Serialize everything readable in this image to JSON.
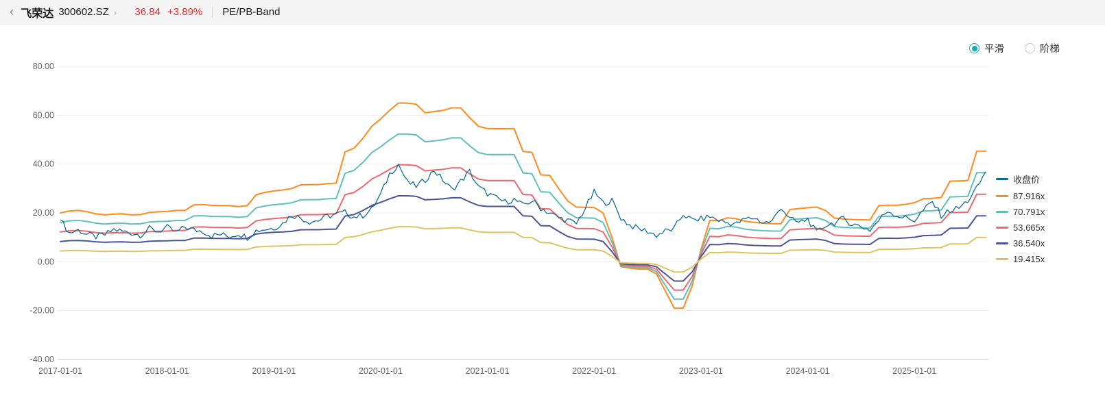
{
  "header": {
    "back_icon": "‹",
    "stock_name": "飞荣达",
    "stock_code": "300602.SZ",
    "chevron": "›",
    "price": "36.84",
    "change": "+3.89%",
    "page_title": "PE/PB-Band",
    "price_color": "#e12e2e"
  },
  "controls": {
    "accent_color": "#0fb0b5",
    "options": [
      {
        "label": "平滑",
        "selected": true
      },
      {
        "label": "阶梯",
        "selected": false
      }
    ]
  },
  "chart_data": {
    "type": "line",
    "title": "PE/PB-Band",
    "grid": true,
    "legend_position": "right",
    "x_axis": {
      "sampling": "monthly",
      "start": "2017-01",
      "end": "2025-09",
      "months_per_tick": 12,
      "tick_labels": [
        "2017-01-01",
        "2018-01-01",
        "2019-01-01",
        "2020-01-01",
        "2021-01-01",
        "2022-01-01",
        "2023-01-01",
        "2024-01-01",
        "2025-01-01"
      ]
    },
    "y_axis": {
      "min": -40,
      "max": 80,
      "ticks": [
        80,
        60,
        40,
        20,
        0,
        -20,
        -40
      ],
      "tick_format": "0.00"
    },
    "close_series": {
      "name": "收盘价",
      "color": "#0f6c97",
      "values": [
        17.2,
        11.8,
        13.0,
        11.2,
        10.2,
        11.0,
        13.2,
        12.4,
        11.8,
        11.0,
        13.6,
        12.4,
        14.0,
        11.9,
        14.2,
        13.0,
        12.6,
        10.6,
        11.2,
        10.4,
        11.6,
        10.0,
        12.8,
        13.4,
        13.8,
        15.8,
        19.2,
        18.0,
        16.4,
        17.0,
        18.6,
        19.4,
        20.2,
        18.4,
        19.0,
        21.5,
        27.5,
        36.0,
        40.0,
        32.5,
        31.0,
        33.5,
        37.5,
        33.5,
        29.5,
        33.0,
        37.0,
        30.5,
        28.0,
        26.0,
        24.5,
        25.5,
        23.0,
        25.0,
        22.0,
        20.0,
        18.0,
        17.0,
        15.5,
        22.0,
        28.5,
        24.0,
        25.0,
        18.0,
        15.0,
        13.5,
        12.5,
        10.8,
        12.5,
        13.5,
        19.5,
        17.0,
        17.5,
        18.5,
        17.0,
        16.0,
        15.5,
        17.5,
        18.0,
        16.0,
        16.5,
        22.5,
        17.5,
        16.0,
        17.5,
        11.8,
        15.0,
        16.0,
        17.5,
        15.5,
        14.5,
        13.0,
        17.0,
        21.0,
        19.0,
        18.0,
        17.0,
        21.0,
        24.5,
        19.0,
        21.0,
        22.0,
        25.0,
        30.0,
        36.84
      ]
    },
    "pe_bands": {
      "driver_multiple": 87.916,
      "driver_values": [
        20.0,
        20.8,
        21.0,
        20.5,
        19.6,
        19.2,
        19.5,
        19.6,
        19.2,
        19.3,
        20.2,
        20.5,
        20.6,
        21.0,
        21.0,
        23.3,
        23.4,
        23.1,
        23.0,
        23.0,
        22.6,
        23.0,
        27.4,
        28.4,
        29.0,
        29.4,
        30.0,
        31.5,
        31.6,
        31.6,
        32.0,
        32.2,
        45.0,
        46.5,
        50.5,
        55.5,
        58.5,
        62.0,
        65.0,
        65.0,
        64.5,
        61.0,
        61.5,
        62.0,
        63.0,
        63.0,
        59.0,
        55.5,
        54.5,
        54.5,
        54.5,
        54.5,
        45.2,
        44.8,
        35.6,
        35.4,
        30.0,
        25.0,
        22.4,
        22.3,
        22.2,
        20.0,
        10.0,
        -2.0,
        -2.6,
        -3.0,
        -3.0,
        -5.0,
        -12.0,
        -19.0,
        -19.0,
        -10.0,
        5.0,
        17.0,
        16.8,
        18.0,
        17.6,
        16.6,
        16.1,
        15.8,
        15.6,
        15.6,
        21.4,
        21.8,
        22.1,
        22.4,
        21.0,
        17.9,
        17.5,
        17.3,
        17.2,
        17.1,
        23.0,
        23.2,
        23.1,
        23.5,
        24.2,
        25.8,
        26.0,
        26.3,
        33.0,
        33.1,
        33.3,
        45.3,
        45.3
      ],
      "bands": [
        {
          "name": "87.916x",
          "multiple": 87.916,
          "color": "#ff8a1e"
        },
        {
          "name": "70.791x",
          "multiple": 70.791,
          "color": "#5fbfbc"
        },
        {
          "name": "53.665x",
          "multiple": 53.665,
          "color": "#e9696f"
        },
        {
          "name": "36.540x",
          "multiple": 36.54,
          "color": "#4a5398"
        },
        {
          "name": "19.415x",
          "multiple": 19.415,
          "color": "#dfc35f"
        }
      ]
    }
  }
}
